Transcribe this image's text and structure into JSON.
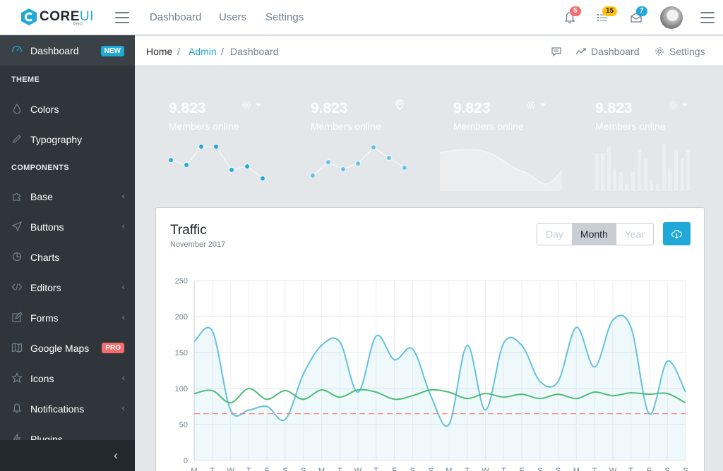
{
  "header": {
    "brand": "CORE",
    "brand_accent": "UI",
    "brand_sub": "PRO",
    "nav": [
      "Dashboard",
      "Users",
      "Settings"
    ],
    "notifications": {
      "bell": "5",
      "list": "15",
      "mail": "7"
    },
    "icons": [
      "hamburger-icon",
      "bell-icon",
      "list-icon",
      "mail-icon",
      "avatar",
      "aside-toggle-icon"
    ]
  },
  "sidebar": {
    "dashboard": {
      "label": "Dashboard",
      "badge": "NEW"
    },
    "theme_title": "THEME",
    "theme_items": [
      "Colors",
      "Typography"
    ],
    "components_title": "COMPONENTS",
    "items": [
      {
        "label": "Base",
        "chevron": "‹"
      },
      {
        "label": "Buttons",
        "chevron": "‹"
      },
      {
        "label": "Charts",
        "chevron": ""
      },
      {
        "label": "Editors",
        "chevron": "‹"
      },
      {
        "label": "Forms",
        "chevron": "‹"
      },
      {
        "label": "Google Maps",
        "badge": "PRO"
      },
      {
        "label": "Icons",
        "chevron": "‹"
      },
      {
        "label": "Notifications",
        "chevron": "‹"
      },
      {
        "label": "Plugins",
        "chevron": ""
      }
    ],
    "minimizer": "‹"
  },
  "breadcrumb": {
    "items": [
      "Home",
      "Admin",
      "Dashboard"
    ],
    "right": [
      {
        "label": "Dashboard"
      },
      {
        "label": "Settings"
      }
    ]
  },
  "cards": [
    {
      "value": "9.823",
      "label": "Members online",
      "color": "#20a8d8"
    },
    {
      "value": "9.823",
      "label": "Members online",
      "color": "#63c2de"
    },
    {
      "value": "9.823",
      "label": "Members online",
      "color": "#ffc107"
    },
    {
      "value": "9.823",
      "label": "Members online",
      "color": "#f86c6b"
    }
  ],
  "traffic": {
    "title": "Traffic",
    "subtitle": "November 2017",
    "buttons": [
      "Day",
      "Month",
      "Year"
    ],
    "selected": "Month"
  },
  "chart_data": {
    "type": "line",
    "title": "Traffic",
    "categories": [
      "M",
      "T",
      "W",
      "T",
      "F",
      "S",
      "S",
      "M",
      "T",
      "W",
      "T",
      "F",
      "S",
      "S",
      "M",
      "T",
      "W",
      "T",
      "F",
      "S",
      "S",
      "M",
      "T",
      "W",
      "T",
      "F",
      "S",
      "S"
    ],
    "yticks": [
      0,
      50,
      100,
      150,
      200,
      250
    ],
    "ylim": [
      0,
      250
    ],
    "grid": true,
    "series": [
      {
        "color": "#63c2de",
        "fill": true,
        "values": [
          165,
          180,
          70,
          70,
          75,
          57,
          120,
          160,
          165,
          95,
          173,
          140,
          155,
          90,
          50,
          160,
          70,
          163,
          160,
          110,
          110,
          185,
          130,
          195,
          185,
          65,
          138,
          95
        ]
      },
      {
        "color": "#4dbd74",
        "fill": false,
        "values": [
          93,
          97,
          80,
          100,
          85,
          97,
          85,
          98,
          88,
          98,
          95,
          85,
          90,
          98,
          95,
          86,
          93,
          88,
          92,
          86,
          92,
          86,
          95,
          90,
          94,
          92,
          93,
          80
        ]
      },
      {
        "color": "#f86c6b",
        "dashed": true,
        "values": [
          65,
          65,
          65,
          65,
          65,
          65,
          65,
          65,
          65,
          65,
          65,
          65,
          65,
          65,
          65,
          65,
          65,
          65,
          65,
          65,
          65,
          65,
          65,
          65,
          65,
          65,
          65,
          65
        ]
      }
    ]
  }
}
